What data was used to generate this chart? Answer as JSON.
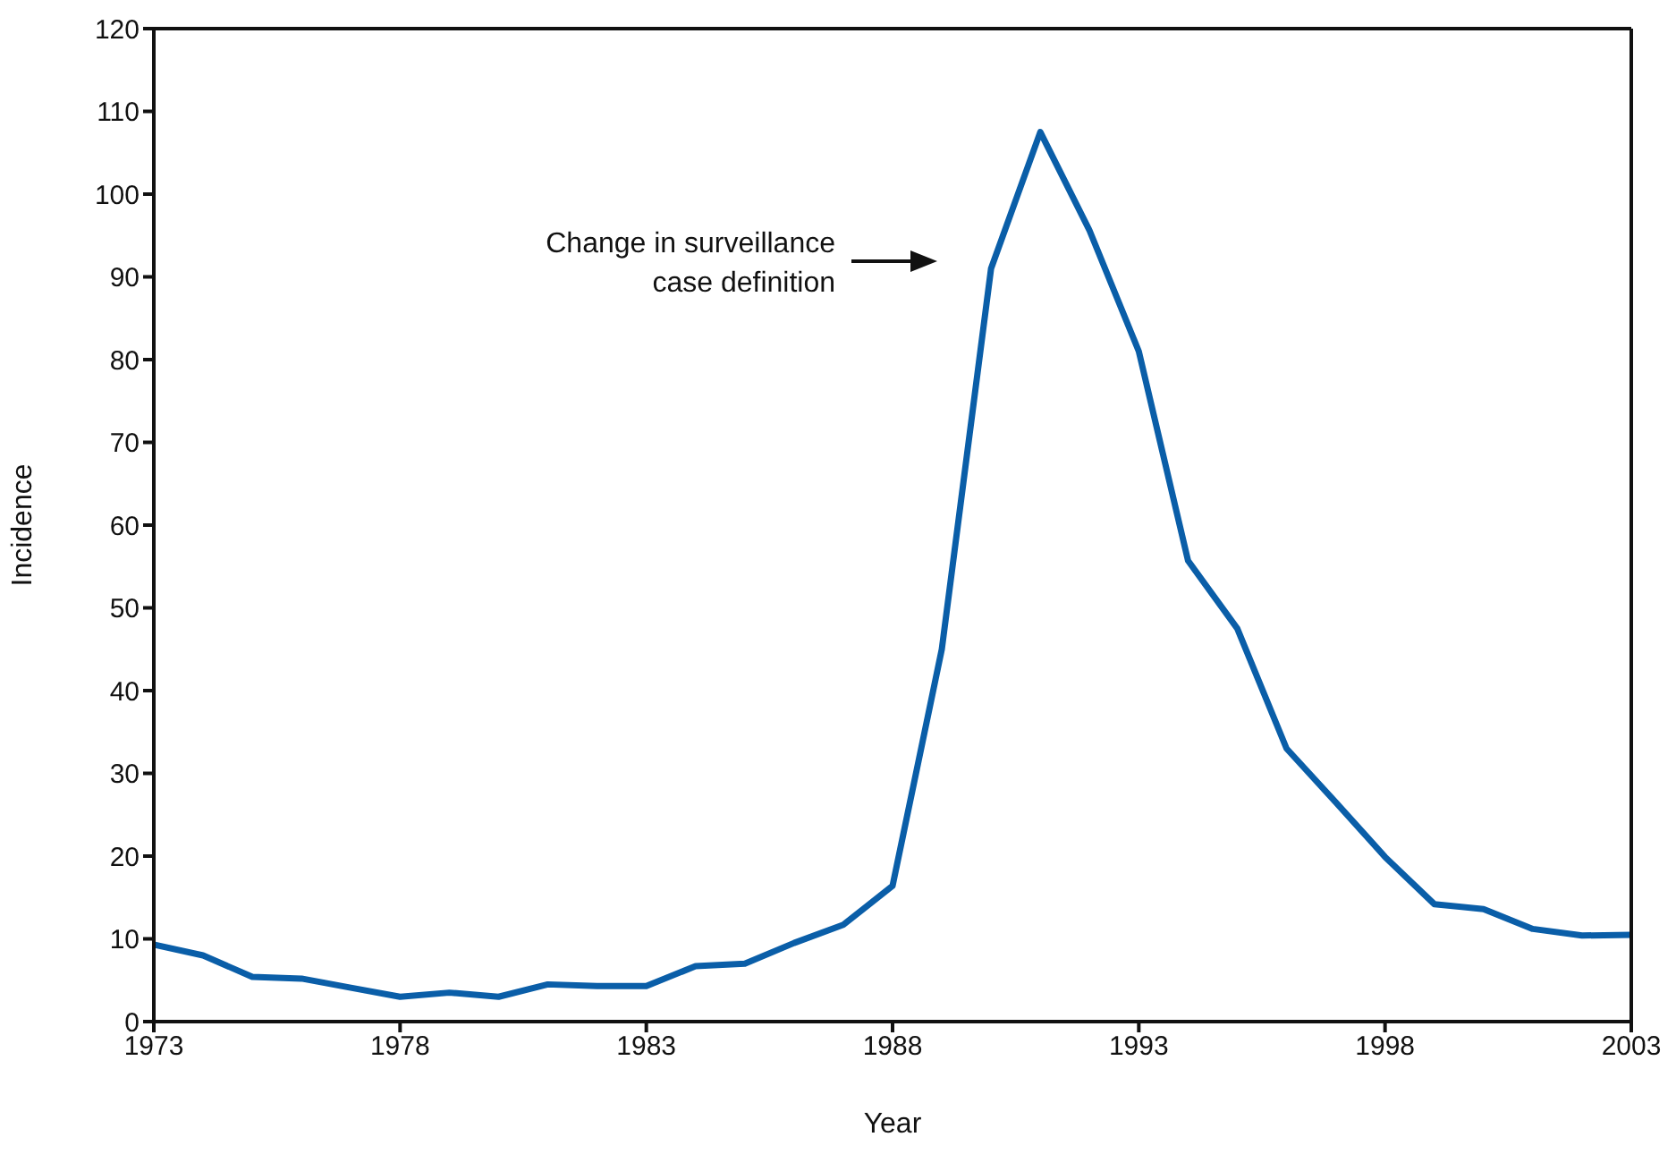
{
  "chart_data": {
    "type": "line",
    "xlabel": "Year",
    "ylabel": "Incidence",
    "x": [
      1973,
      1974,
      1975,
      1976,
      1977,
      1978,
      1979,
      1980,
      1981,
      1982,
      1983,
      1984,
      1985,
      1986,
      1987,
      1988,
      1989,
      1990,
      1991,
      1992,
      1993,
      1994,
      1995,
      1996,
      1997,
      1998,
      1999,
      2000,
      2001,
      2002,
      2003
    ],
    "series": [
      {
        "color": "#0a5ea8",
        "values": [
          9.3,
          8,
          5.4,
          5.2,
          4.1,
          3,
          3.5,
          3,
          4.5,
          4.3,
          4.3,
          6.7,
          7,
          9.5,
          11.7,
          16.4,
          45,
          91,
          107.5,
          95.6,
          81,
          55.7,
          47.5,
          33,
          26.5,
          19.9,
          14.2,
          13.6,
          11.2,
          10.4,
          10.5
        ]
      }
    ],
    "xlim": [
      1973,
      2003
    ],
    "xticks": [
      1973,
      1978,
      1983,
      1988,
      1993,
      1998,
      2003
    ],
    "ylim": [
      0,
      120
    ],
    "yticks": [
      0,
      10,
      20,
      30,
      40,
      50,
      60,
      70,
      80,
      90,
      100,
      110,
      120
    ],
    "grid": false,
    "legend": false,
    "marker": "none",
    "line_style": "solid",
    "annotations": [
      "Change in surveillance case definition"
    ]
  }
}
